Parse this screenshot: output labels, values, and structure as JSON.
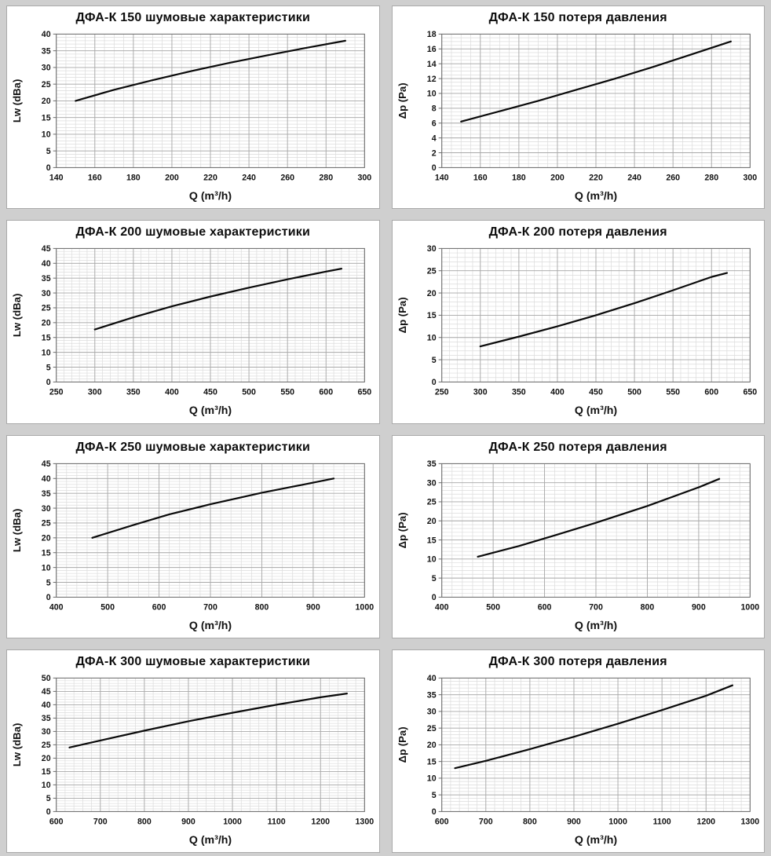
{
  "page": {
    "background": "#cfcfcf",
    "panel_background": "#ffffff",
    "panel_border": "#aaaaaa"
  },
  "colors": {
    "line": "#0a0a0a",
    "grid_minor": "#dcdcdc",
    "grid_major": "#a8a8a8",
    "plot_border": "#6e6e6e",
    "text": "#111111"
  },
  "chart_data": [
    {
      "type": "line",
      "title": "ДФА-К 150 шумовые характеристики",
      "xlabel": "Q (m³/h)",
      "ylabel": "Lw (dBa)",
      "xlim": [
        140,
        300
      ],
      "ylim": [
        0,
        40
      ],
      "xtick": 20,
      "ytick": 5,
      "xminor": 5,
      "yminor": 1,
      "grid": true,
      "legend": "none",
      "x": [
        150,
        170,
        190,
        210,
        230,
        250,
        270,
        290
      ],
      "y": [
        20,
        23.3,
        26.2,
        28.9,
        31.4,
        33.7,
        35.9,
        38
      ]
    },
    {
      "type": "line",
      "title": "ДФА-К 150 потеря давления",
      "xlabel": "Q (m³/h)",
      "ylabel": "Δp (Pa)",
      "xlim": [
        140,
        300
      ],
      "ylim": [
        0,
        18
      ],
      "xtick": 20,
      "ytick": 2,
      "xminor": 5,
      "yminor": 0.5,
      "grid": true,
      "legend": "none",
      "x": [
        150,
        170,
        190,
        210,
        230,
        250,
        270,
        290
      ],
      "y": [
        6.2,
        7.6,
        9,
        10.5,
        12,
        13.6,
        15.3,
        17
      ]
    },
    {
      "type": "line",
      "title": "ДФА-К 200 шумовые характеристики",
      "xlabel": "Q (m³/h)",
      "ylabel": "Lw (dBa)",
      "xlim": [
        250,
        650
      ],
      "ylim": [
        0,
        45
      ],
      "xtick": 50,
      "ytick": 5,
      "xminor": 10,
      "yminor": 1,
      "grid": true,
      "legend": "none",
      "x": [
        300,
        350,
        400,
        450,
        500,
        550,
        600,
        620
      ],
      "y": [
        17.7,
        21.8,
        25.5,
        28.8,
        31.8,
        34.6,
        37.2,
        38.2
      ]
    },
    {
      "type": "line",
      "title": "ДФА-К 200 потеря давления",
      "xlabel": "Q (m³/h)",
      "ylabel": "Δp (Pa)",
      "xlim": [
        250,
        650
      ],
      "ylim": [
        0,
        30
      ],
      "xtick": 50,
      "ytick": 5,
      "xminor": 10,
      "yminor": 1,
      "grid": true,
      "legend": "none",
      "x": [
        300,
        350,
        400,
        450,
        500,
        550,
        600,
        620
      ],
      "y": [
        8,
        10.2,
        12.5,
        15,
        17.7,
        20.6,
        23.6,
        24.5
      ]
    },
    {
      "type": "line",
      "title": "ДФА-К 250 шумовые характеристики",
      "xlabel": "Q (m³/h)",
      "ylabel": "Lw (dBa)",
      "xlim": [
        400,
        1000
      ],
      "ylim": [
        0,
        45
      ],
      "xtick": 100,
      "ytick": 5,
      "xminor": 20,
      "yminor": 1,
      "grid": true,
      "legend": "none",
      "x": [
        470,
        550,
        620,
        700,
        800,
        900,
        940
      ],
      "y": [
        20,
        24.3,
        27.9,
        31.3,
        35.2,
        38.6,
        40
      ]
    },
    {
      "type": "line",
      "title": "ДФА-К 250 потеря давления",
      "xlabel": "Q (m³/h)",
      "ylabel": "Δp (Pa)",
      "xlim": [
        400,
        1000
      ],
      "ylim": [
        0,
        35
      ],
      "xtick": 100,
      "ytick": 5,
      "xminor": 20,
      "yminor": 1,
      "grid": true,
      "legend": "none",
      "x": [
        470,
        550,
        620,
        700,
        800,
        900,
        940
      ],
      "y": [
        10.6,
        13.4,
        16.2,
        19.5,
        23.9,
        28.8,
        31
      ]
    },
    {
      "type": "line",
      "title": "ДФА-К 300 шумовые характеристики",
      "xlabel": "Q (m³/h)",
      "ylabel": "Lw (dBa)",
      "xlim": [
        600,
        1300
      ],
      "ylim": [
        0,
        50
      ],
      "xtick": 100,
      "ytick": 5,
      "xminor": 20,
      "yminor": 1,
      "grid": true,
      "legend": "none",
      "x": [
        630,
        700,
        800,
        900,
        1000,
        1100,
        1200,
        1260
      ],
      "y": [
        24,
        26.6,
        30.3,
        33.8,
        37,
        40,
        42.8,
        44.2
      ]
    },
    {
      "type": "line",
      "title": "ДФА-К 300 потеря давления",
      "xlabel": "Q (m³/h)",
      "ylabel": "Δp (Pa)",
      "xlim": [
        600,
        1300
      ],
      "ylim": [
        0,
        40
      ],
      "xtick": 100,
      "ytick": 5,
      "xminor": 20,
      "yminor": 1,
      "grid": true,
      "legend": "none",
      "x": [
        630,
        700,
        800,
        900,
        1000,
        1100,
        1200,
        1260
      ],
      "y": [
        13,
        15.2,
        18.7,
        22.4,
        26.3,
        30.4,
        34.7,
        37.8
      ]
    }
  ]
}
